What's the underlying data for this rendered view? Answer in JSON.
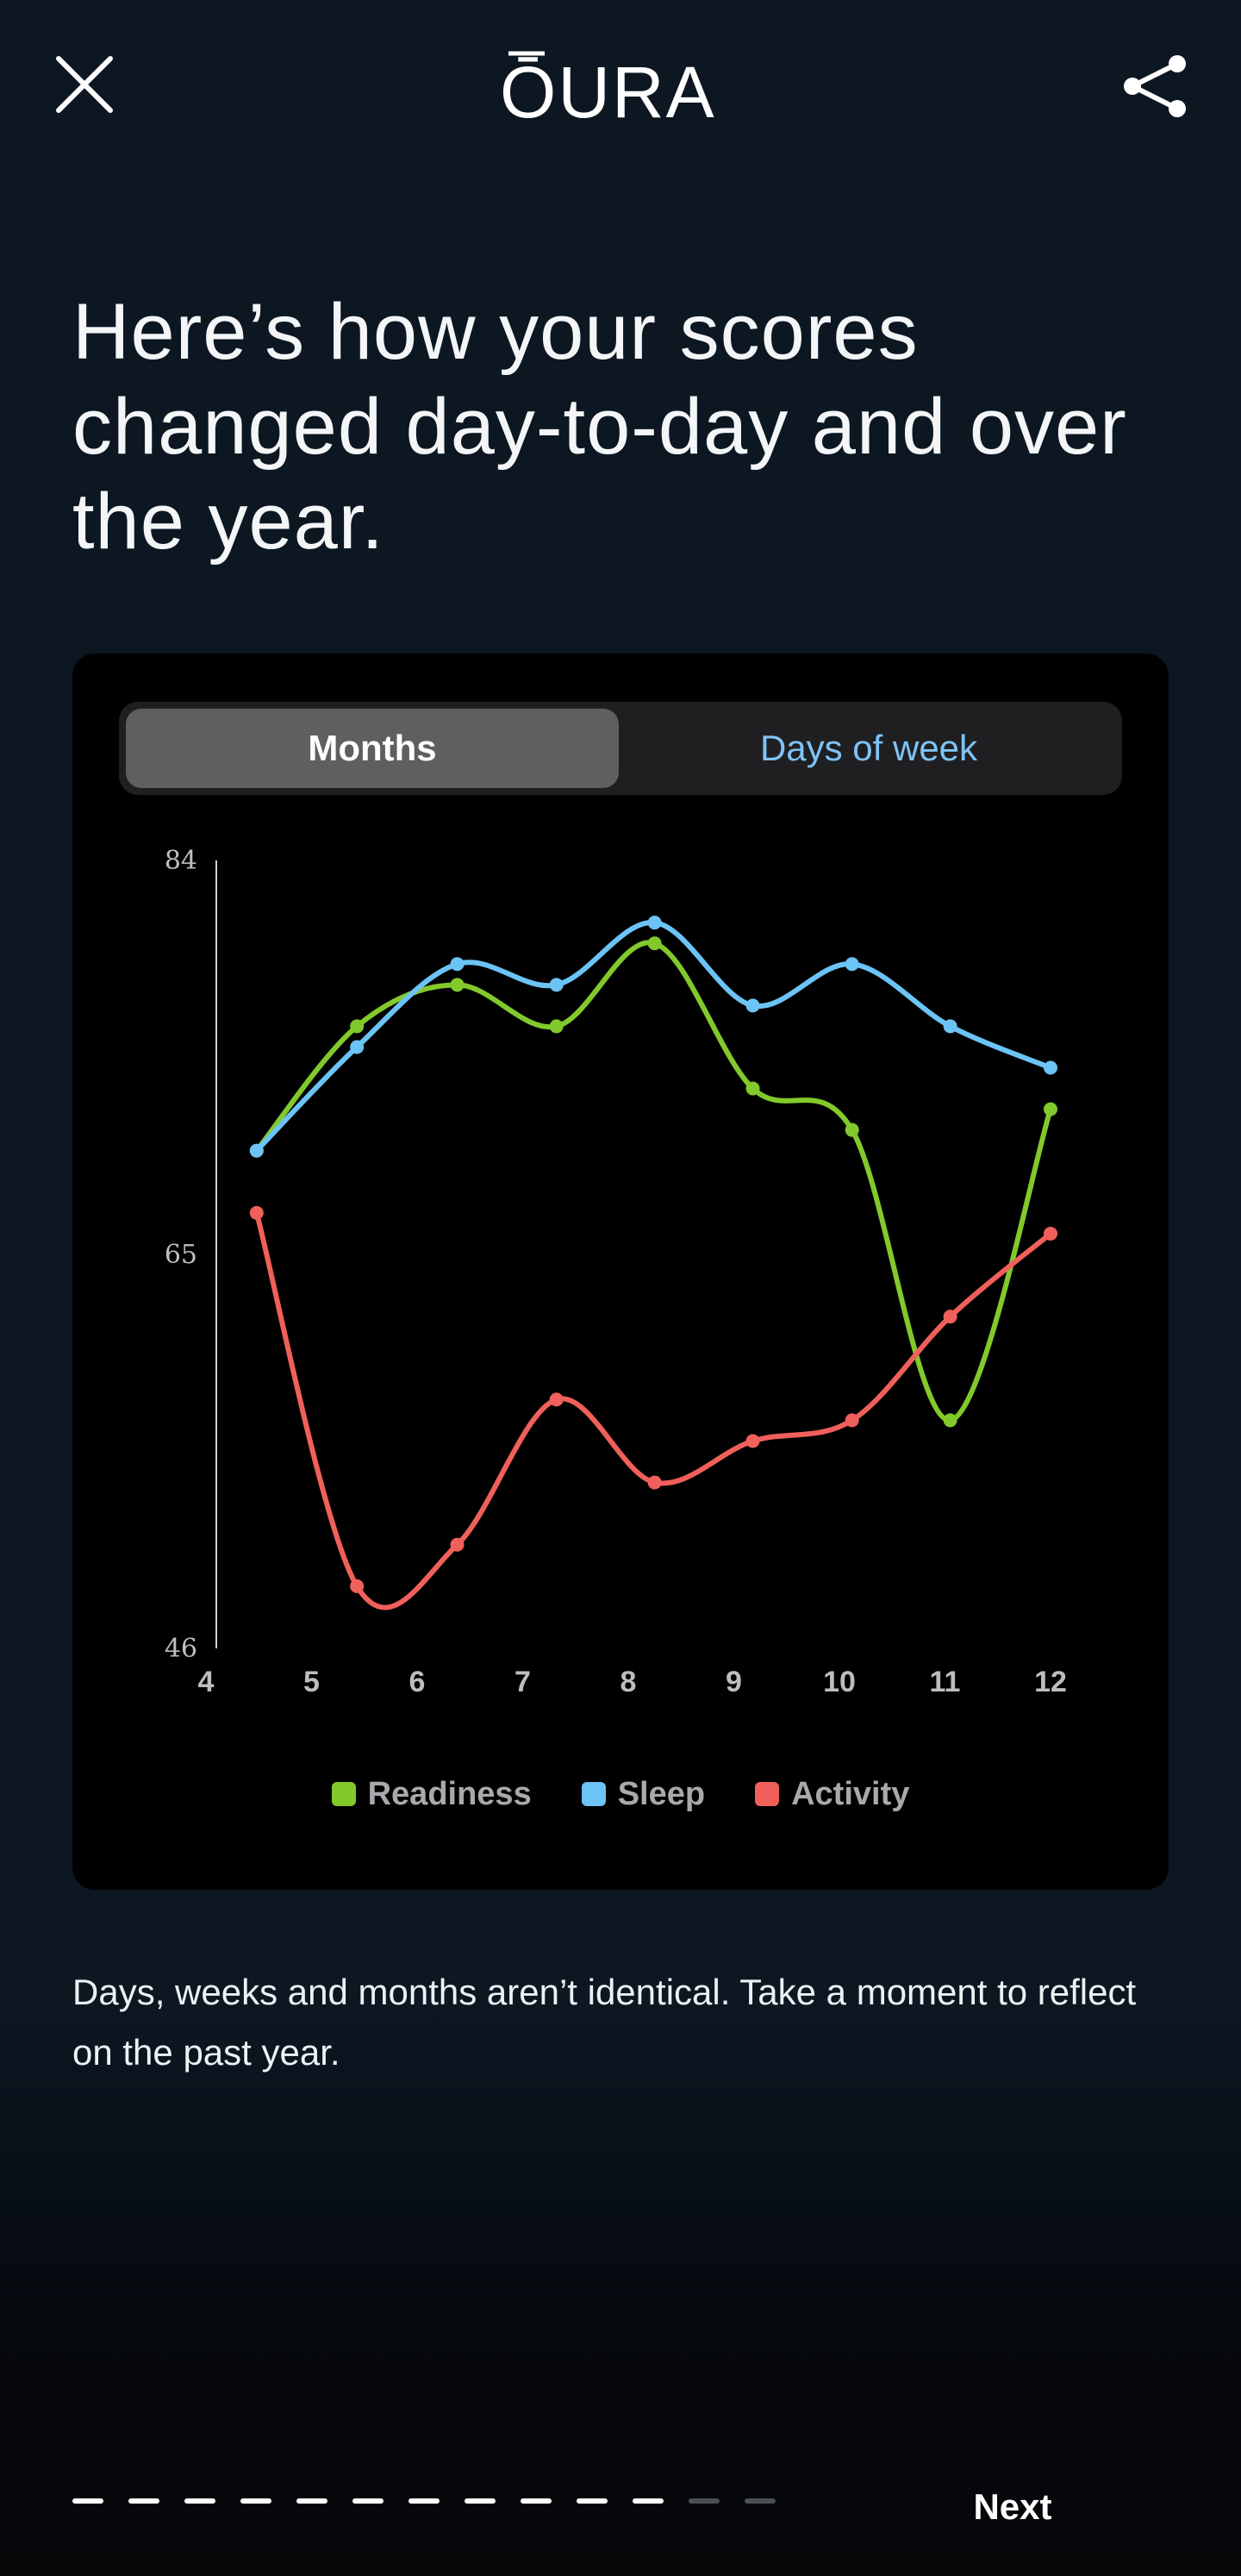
{
  "header": {
    "logo_text": "ŌURA",
    "close_icon": "close-icon",
    "share_icon": "share-icon"
  },
  "headline": "Here’s how your scores changed day-to-day and over the year.",
  "toggle": {
    "active_label": "Months",
    "inactive_label": "Days of week"
  },
  "chart_data": {
    "type": "line",
    "x": [
      4,
      5,
      6,
      7,
      8,
      9,
      10,
      11,
      12
    ],
    "xticks": [
      "4",
      "5",
      "6",
      "7",
      "8",
      "9",
      "10",
      "11",
      "12"
    ],
    "ylim": [
      46,
      84
    ],
    "yticks": [
      "84",
      "65",
      "46"
    ],
    "ytick_values": [
      84,
      65,
      46
    ],
    "series": [
      {
        "name": "Readiness",
        "color": "#82c92c",
        "points": [
          [
            4.48,
            70.0
          ],
          [
            5.43,
            76.0
          ],
          [
            6.38,
            78.0
          ],
          [
            7.32,
            76.0
          ],
          [
            8.25,
            80.0
          ],
          [
            9.18,
            73.0
          ],
          [
            10.12,
            71.0
          ],
          [
            11.05,
            57.0
          ],
          [
            12.0,
            72.0
          ]
        ]
      },
      {
        "name": "Sleep",
        "color": "#6cc3f5",
        "points": [
          [
            4.48,
            70.0
          ],
          [
            5.43,
            75.0
          ],
          [
            6.38,
            79.0
          ],
          [
            7.32,
            78.0
          ],
          [
            8.25,
            81.0
          ],
          [
            9.18,
            77.0
          ],
          [
            10.12,
            79.0
          ],
          [
            11.05,
            76.0
          ],
          [
            12.0,
            74.0
          ]
        ]
      },
      {
        "name": "Activity",
        "color": "#f0605a",
        "points": [
          [
            4.48,
            67.0
          ],
          [
            5.43,
            49.0
          ],
          [
            6.38,
            51.0
          ],
          [
            7.32,
            58.0
          ],
          [
            8.25,
            54.0
          ],
          [
            9.18,
            56.0
          ],
          [
            10.12,
            57.0
          ],
          [
            11.05,
            62.0
          ],
          [
            12.0,
            66.0
          ]
        ]
      }
    ],
    "legend_position": "bottom",
    "grid": false
  },
  "legend": [
    {
      "label": "Readiness",
      "color": "#82c92c"
    },
    {
      "label": "Sleep",
      "color": "#6cc3f5"
    },
    {
      "label": "Activity",
      "color": "#f0605a"
    }
  ],
  "caption": "Days, weeks and months aren’t identical. Take a moment to reflect on the past year.",
  "progress": {
    "completed": 11,
    "total": 13
  },
  "footer": {
    "next_label": "Next"
  }
}
